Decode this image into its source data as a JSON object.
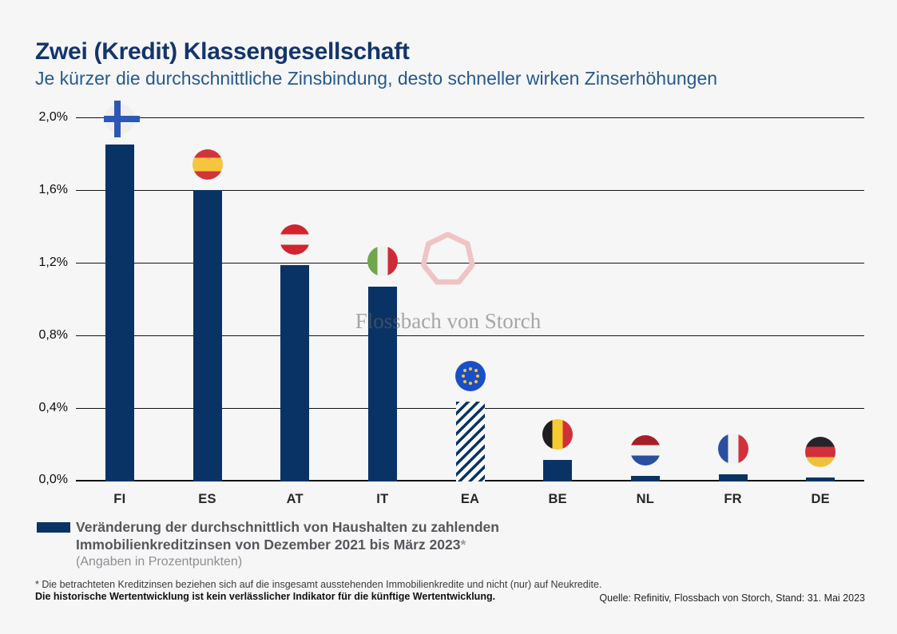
{
  "header": {
    "title": "Zwei (Kredit) Klassengesellschaft",
    "subtitle": "Je kürzer die durchschnittliche Zinsbindung, desto schneller wirken Zinserhöhungen"
  },
  "chart_data": {
    "type": "bar",
    "title": "Zwei (Kredit) Klassengesellschaft",
    "categories": [
      "FI",
      "ES",
      "AT",
      "IT",
      "EA",
      "BE",
      "NL",
      "FR",
      "DE"
    ],
    "values": [
      1.85,
      1.6,
      1.19,
      1.07,
      0.44,
      0.12,
      0.03,
      0.04,
      0.02
    ],
    "series_label": "Veränderung der durchschnittlich von Haushalten zu zahlenden Immobilienkreditzinsen von Dezember 2021 bis März 2023 (Angaben in Prozentpunkten)",
    "flag_codes": [
      "fi",
      "es",
      "at",
      "it",
      "eu",
      "be",
      "nl",
      "fr",
      "de"
    ],
    "hatched_category": "EA",
    "bar_color": "#0a3365",
    "ylim": [
      0,
      2.0
    ],
    "yticks_top_down": [
      "2,0%",
      "1,6%",
      "1,2%",
      "0,8%",
      "0,4%",
      "0,0%"
    ],
    "grid": true,
    "legend_position": "bottom-left"
  },
  "watermark": {
    "text": "Flossbach von Storch",
    "logo_color": "#eec5c4"
  },
  "legend": {
    "swatch_color": "#0a3365",
    "line1": "Veränderung der durchschnittlich von Haushalten zu zahlenden",
    "line2": "Immobilienkreditzinsen von Dezember 2021 bis März 2023",
    "asterisk": "*",
    "note": "(Angaben in Prozentpunkten)"
  },
  "footnotes": {
    "line1": "* Die betrachteten Kreditzinsen beziehen sich auf die insgesamt ausstehenden Immobilienkredite und nicht (nur) auf Neukredite.",
    "line2": "Die historische Wertentwicklung ist kein verlässlicher Indikator für die künftige Wertentwicklung."
  },
  "source": "Quelle: Refinitiv, Flossbach von Storch, Stand: 31. Mai 2023"
}
